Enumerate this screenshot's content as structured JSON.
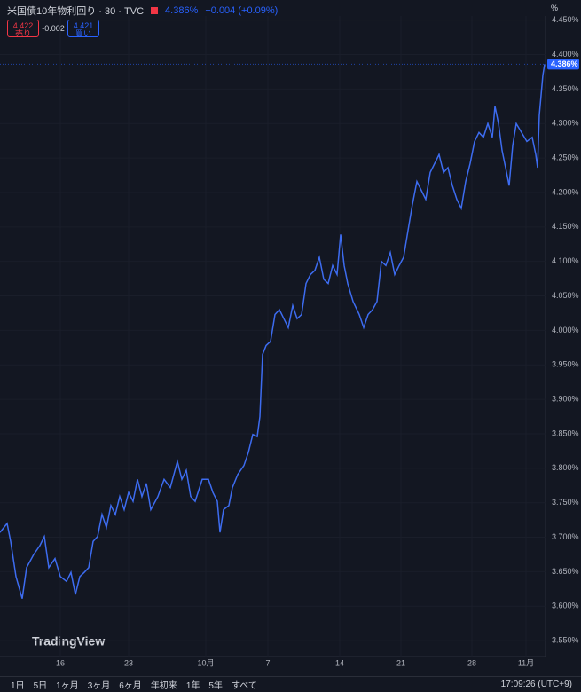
{
  "header": {
    "title": "米国債10年物利回り · 30 · TVC",
    "price": "4.386%",
    "change": "+0.004 (+0.09%)",
    "sell_price": "4.422",
    "sell_label": "売り",
    "spread": "-0.002",
    "buy_price": "4.421",
    "buy_label": "買い",
    "unit": "%"
  },
  "logo": "TradingView",
  "toolbar": {
    "ranges": [
      "1日",
      "5日",
      "1ヶ月",
      "3ヶ月",
      "6ヶ月",
      "年初来",
      "1年",
      "5年",
      "すべて"
    ],
    "time": "17:09:26 (UTC+9)"
  },
  "chart_data": {
    "type": "line",
    "grid": true,
    "xlim": [
      0,
      61.5
    ],
    "xticks": [
      {
        "value": 6.8,
        "label": "16"
      },
      {
        "value": 14.5,
        "label": "23"
      },
      {
        "value": 23.2,
        "label": "10月"
      },
      {
        "value": 30.2,
        "label": "7"
      },
      {
        "value": 38.3,
        "label": "14"
      },
      {
        "value": 45.2,
        "label": "21"
      },
      {
        "value": 53.2,
        "label": "28"
      },
      {
        "value": 59.3,
        "label": "11月"
      }
    ],
    "ylim": [
      3.527,
      4.456
    ],
    "yticks": [
      {
        "value": 3.55,
        "label": "3.550%"
      },
      {
        "value": 3.6,
        "label": "3.600%"
      },
      {
        "value": 3.65,
        "label": "3.650%"
      },
      {
        "value": 3.7,
        "label": "3.700%"
      },
      {
        "value": 3.75,
        "label": "3.750%"
      },
      {
        "value": 3.8,
        "label": "3.800%"
      },
      {
        "value": 3.85,
        "label": "3.850%"
      },
      {
        "value": 3.9,
        "label": "3.900%"
      },
      {
        "value": 3.95,
        "label": "3.950%"
      },
      {
        "value": 4.0,
        "label": "4.000%"
      },
      {
        "value": 4.05,
        "label": "4.050%"
      },
      {
        "value": 4.1,
        "label": "4.100%"
      },
      {
        "value": 4.15,
        "label": "4.150%"
      },
      {
        "value": 4.2,
        "label": "4.200%"
      },
      {
        "value": 4.25,
        "label": "4.250%"
      },
      {
        "value": 4.3,
        "label": "4.300%"
      },
      {
        "value": 4.35,
        "label": "4.350%"
      },
      {
        "value": 4.4,
        "label": "4.400%"
      },
      {
        "value": 4.45,
        "label": "4.450%"
      }
    ],
    "last_value": {
      "value": 4.386,
      "label": "4.386%"
    },
    "x": [
      0,
      0.8,
      1.2,
      1.8,
      2.5,
      3.0,
      3.8,
      4.5,
      5.0,
      5.5,
      6.2,
      6.8,
      7.5,
      8.0,
      8.5,
      9.0,
      9.5,
      10.0,
      10.5,
      11.0,
      11.5,
      12.0,
      12.5,
      13.0,
      13.5,
      14.0,
      14.5,
      15.0,
      15.5,
      16.0,
      16.5,
      17.0,
      17.8,
      18.5,
      19.2,
      20.0,
      20.5,
      21.0,
      21.5,
      22.0,
      22.8,
      23.5,
      24.0,
      24.5,
      24.8,
      25.2,
      25.8,
      26.2,
      26.8,
      27.5,
      28.0,
      28.5,
      29.0,
      29.3,
      29.6,
      30.0,
      30.5,
      31.0,
      31.5,
      32.0,
      32.5,
      33.0,
      33.5,
      34.0,
      34.5,
      35.0,
      35.5,
      36.0,
      36.5,
      37.0,
      37.5,
      38.0,
      38.4,
      38.8,
      39.2,
      39.8,
      40.5,
      41.0,
      41.5,
      42.0,
      42.5,
      43.0,
      43.5,
      44.0,
      44.5,
      45.0,
      45.5,
      46.0,
      46.5,
      47.0,
      47.5,
      48.0,
      48.5,
      49.0,
      49.5,
      50.0,
      50.5,
      51.0,
      51.5,
      52.0,
      52.5,
      53.0,
      53.5,
      54.0,
      54.5,
      55.0,
      55.5,
      55.8,
      56.2,
      56.6,
      57.0,
      57.4,
      57.8,
      58.2,
      58.8,
      59.4,
      60.0,
      60.4,
      60.6,
      60.8,
      61.2,
      61.4
    ],
    "series": [
      {
        "name": "米国債10年物利回り",
        "color": "#3d6cf0",
        "values": [
          3.707,
          3.72,
          3.694,
          3.643,
          3.611,
          3.656,
          3.675,
          3.688,
          3.701,
          3.656,
          3.669,
          3.643,
          3.636,
          3.649,
          3.617,
          3.643,
          3.649,
          3.656,
          3.694,
          3.701,
          3.733,
          3.714,
          3.746,
          3.733,
          3.759,
          3.74,
          3.765,
          3.752,
          3.784,
          3.759,
          3.778,
          3.74,
          3.759,
          3.784,
          3.772,
          3.81,
          3.784,
          3.797,
          3.759,
          3.752,
          3.784,
          3.784,
          3.765,
          3.752,
          3.707,
          3.74,
          3.746,
          3.772,
          3.791,
          3.804,
          3.823,
          3.849,
          3.846,
          3.875,
          3.965,
          3.978,
          3.984,
          4.023,
          4.03,
          4.017,
          4.004,
          4.036,
          4.017,
          4.023,
          4.068,
          4.081,
          4.087,
          4.106,
          4.074,
          4.068,
          4.094,
          4.081,
          4.139,
          4.094,
          4.068,
          4.042,
          4.023,
          4.004,
          4.023,
          4.03,
          4.042,
          4.1,
          4.094,
          4.113,
          4.081,
          4.094,
          4.106,
          4.145,
          4.183,
          4.216,
          4.203,
          4.19,
          4.229,
          4.242,
          4.255,
          4.229,
          4.236,
          4.21,
          4.19,
          4.177,
          4.216,
          4.242,
          4.274,
          4.287,
          4.28,
          4.3,
          4.28,
          4.325,
          4.3,
          4.261,
          4.236,
          4.21,
          4.268,
          4.3,
          4.287,
          4.274,
          4.28,
          4.255,
          4.236,
          4.312,
          4.37,
          4.386
        ]
      }
    ]
  }
}
